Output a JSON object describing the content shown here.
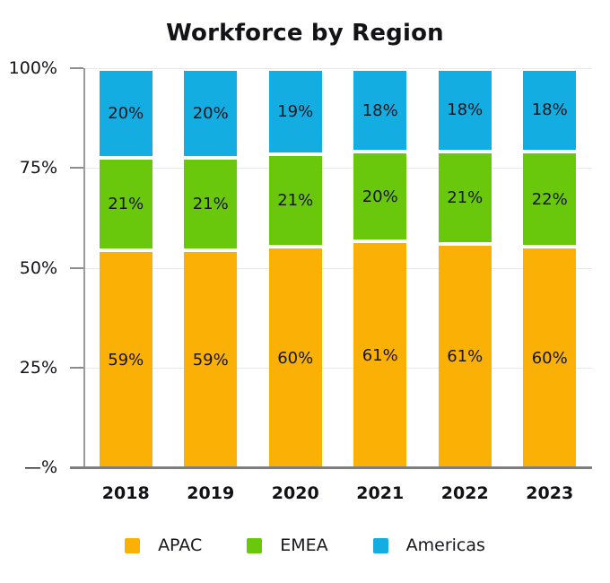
{
  "title": "Workforce by Region",
  "chart_data": {
    "type": "bar",
    "stacked": true,
    "title": "Workforce by Region",
    "categories": [
      "2018",
      "2019",
      "2020",
      "2021",
      "2022",
      "2023"
    ],
    "series": [
      {
        "name": "APAC",
        "color": "#FBB005",
        "values": [
          59,
          59,
          60,
          61,
          61,
          60
        ]
      },
      {
        "name": "EMEA",
        "color": "#69C80B",
        "values": [
          21,
          21,
          21,
          20,
          21,
          22
        ]
      },
      {
        "name": "Americas",
        "color": "#14ADE1",
        "values": [
          20,
          20,
          19,
          18,
          18,
          18
        ]
      }
    ],
    "value_suffix": "%",
    "yticks": [
      "100%",
      "75%",
      "50%",
      "25%",
      "—%"
    ],
    "ylim": [
      0,
      100
    ],
    "grid": true,
    "legend_position": "bottom",
    "axis_color": "#9a9a9a",
    "gridline_color": "#e8e8e8",
    "label_color": "#15151d"
  }
}
